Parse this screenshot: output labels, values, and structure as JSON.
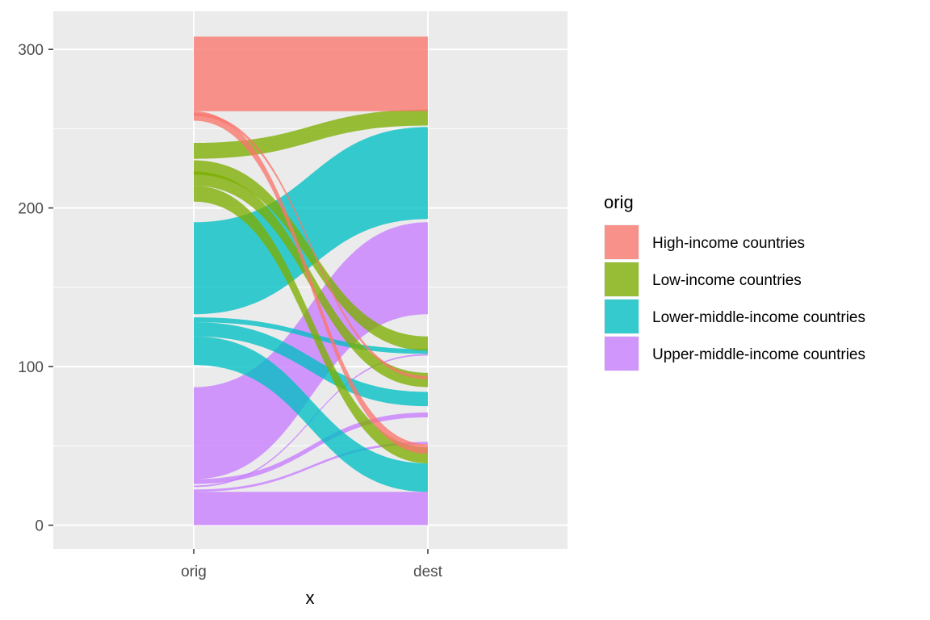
{
  "chart_data": {
    "type": "alluvial",
    "x_axis_title": "x",
    "x_categories": [
      "orig",
      "dest"
    ],
    "y_ticks": [
      0,
      100,
      200,
      300
    ],
    "ylim": [
      -15,
      324
    ],
    "grid": true,
    "legend": {
      "title": "orig",
      "position": "right",
      "entries": [
        {
          "name": "High-income countries",
          "color": "#F8766D"
        },
        {
          "name": "Low-income countries",
          "color": "#7CAE00"
        },
        {
          "name": "Lower-middle-income countries",
          "color": "#00BFC4"
        },
        {
          "name": "Upper-middle-income countries",
          "color": "#C77CFF"
        }
      ]
    },
    "flows": [
      {
        "orig": "Upper-middle-income countries",
        "dest": "Upper-middle-income countries",
        "value": 21,
        "orig_bottom": 0,
        "dest_bottom": 0
      },
      {
        "orig": "Upper-middle-income countries",
        "dest": "High-income countries",
        "value": 1.5,
        "orig_bottom": 21,
        "dest_bottom": 51
      },
      {
        "orig": "Upper-middle-income countries",
        "dest": "Lower-middle-income countries",
        "value": 1,
        "orig_bottom": 24,
        "dest_bottom": 107
      },
      {
        "orig": "Upper-middle-income countries",
        "dest": "Lower-middle-income countries",
        "value": 3,
        "orig_bottom": 26,
        "dest_bottom": 68
      },
      {
        "orig": "Upper-middle-income countries",
        "dest": "Upper-middle-income countries",
        "value": 58,
        "orig_bottom": 29,
        "dest_bottom": 133
      },
      {
        "orig": "Lower-middle-income countries",
        "dest": "Lower-middle-income countries",
        "value": 18,
        "orig_bottom": 101,
        "dest_bottom": 21
      },
      {
        "orig": "Lower-middle-income countries",
        "dest": "Lower-middle-income countries",
        "value": 9,
        "orig_bottom": 119,
        "dest_bottom": 75
      },
      {
        "orig": "Lower-middle-income countries",
        "dest": "Lower-middle-income countries",
        "value": 3,
        "orig_bottom": 128,
        "dest_bottom": 108
      },
      {
        "orig": "Lower-middle-income countries",
        "dest": "Lower-middle-income countries",
        "value": 58,
        "orig_bottom": 133,
        "dest_bottom": 193
      },
      {
        "orig": "Low-income countries",
        "dest": "Low-income countries",
        "value": 10,
        "orig_bottom": 204,
        "dest_bottom": 39
      },
      {
        "orig": "Low-income countries",
        "dest": "Low-income countries",
        "value": 9,
        "orig_bottom": 214,
        "dest_bottom": 87
      },
      {
        "orig": "Low-income countries",
        "dest": "Low-income countries",
        "value": 9,
        "orig_bottom": 221,
        "dest_bottom": 110
      },
      {
        "orig": "Low-income countries",
        "dest": "Low-income countries",
        "value": 10,
        "orig_bottom": 231,
        "dest_bottom": 252
      },
      {
        "orig": "High-income countries",
        "dest": "High-income countries",
        "value": 6,
        "orig_bottom": 255,
        "dest_bottom": 45
      },
      {
        "orig": "High-income countries",
        "dest": "High-income countries",
        "value": 2,
        "orig_bottom": 258,
        "dest_bottom": 92
      },
      {
        "orig": "High-income countries",
        "dest": "High-income countries",
        "value": 47,
        "orig_bottom": 261,
        "dest_bottom": 261
      }
    ]
  }
}
